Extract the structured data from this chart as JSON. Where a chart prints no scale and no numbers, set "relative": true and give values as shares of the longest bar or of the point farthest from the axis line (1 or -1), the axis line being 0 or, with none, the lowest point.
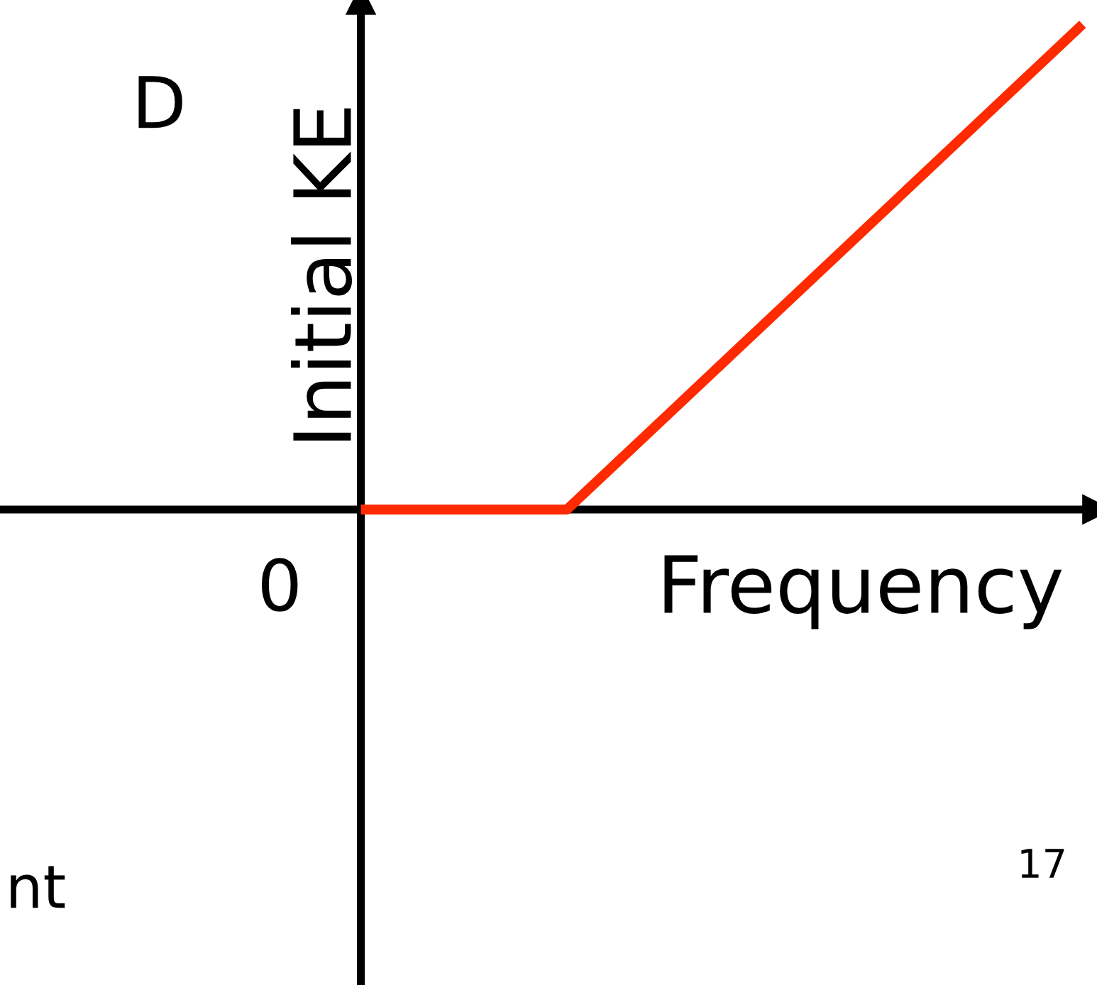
{
  "chart_data": {
    "type": "line",
    "relative": true,
    "xlabel": "Frequency",
    "ylabel": "Initial KE",
    "categories": [
      null,
      null,
      null,
      null,
      null,
      null,
      null,
      null
    ],
    "series": [
      {
        "color": "#ff2a00",
        "values": [
          0,
          0,
          0,
          0.2,
          0.4,
          0.6,
          0.8,
          1
        ]
      }
    ],
    "marker": "none",
    "line_style": "solid",
    "annotations": [
      "0",
      "D",
      "nt",
      "17"
    ]
  }
}
